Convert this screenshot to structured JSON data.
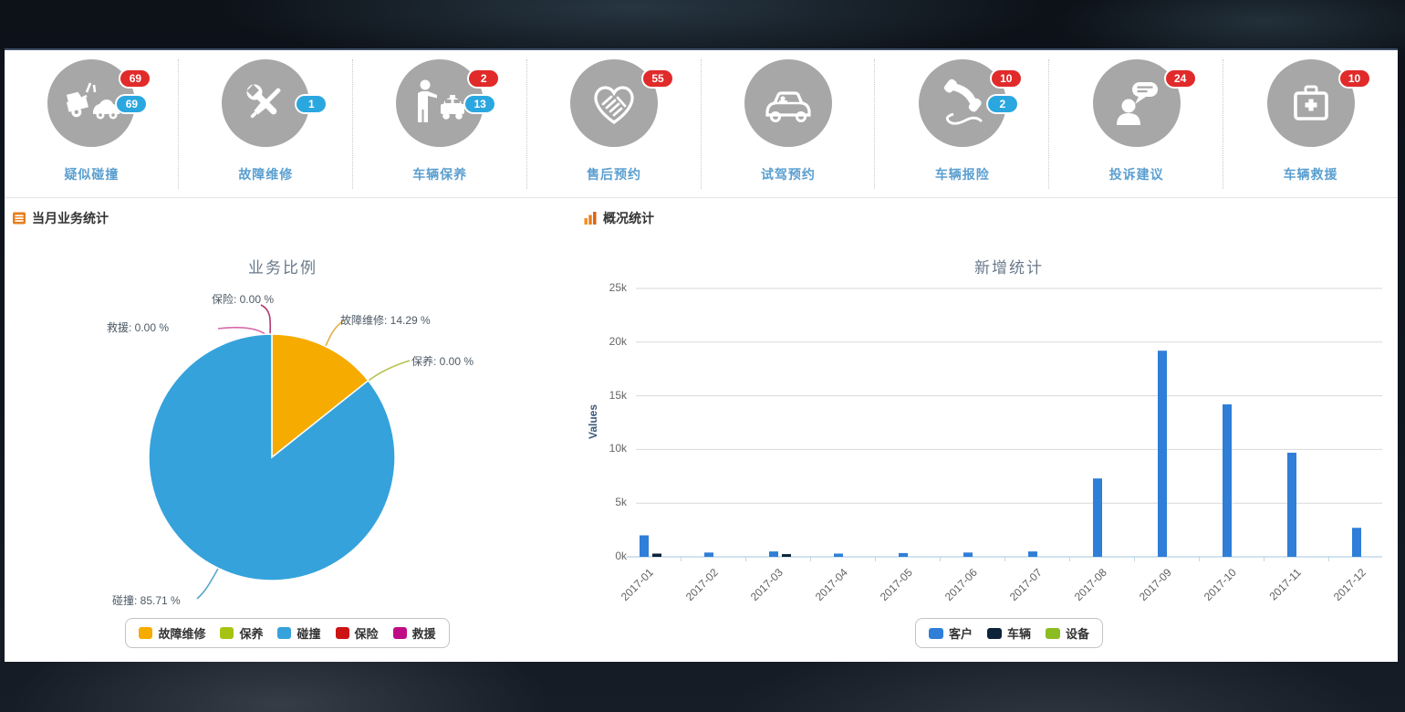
{
  "quick_actions": {
    "items": [
      {
        "label": "疑似碰撞",
        "icon": "car-collision-icon",
        "badge_red": "69",
        "badge_blue": "69"
      },
      {
        "label": "故障维修",
        "icon": "repair-tools-icon",
        "badge_red": null,
        "badge_blue": "1"
      },
      {
        "label": "车辆保养",
        "icon": "person-taxi-icon",
        "badge_red": "2",
        "badge_blue": "13"
      },
      {
        "label": "售后预约",
        "icon": "handshake-heart-icon",
        "badge_red": "55",
        "badge_blue": null
      },
      {
        "label": "试驾预约",
        "icon": "car-icon",
        "badge_red": null,
        "badge_blue": null
      },
      {
        "label": "车辆报险",
        "icon": "phone-handset-icon",
        "badge_red": "10",
        "badge_blue": "2"
      },
      {
        "label": "投诉建议",
        "icon": "person-speech-bubble-icon",
        "badge_red": "24",
        "badge_blue": null
      },
      {
        "label": "车辆救援",
        "icon": "first-aid-kit-icon",
        "badge_red": "10",
        "badge_blue": null
      }
    ]
  },
  "sections": {
    "left": {
      "title": "当月业务统计"
    },
    "right": {
      "title": "概况统计"
    }
  },
  "colors": {
    "badge_red": "#e12a2a",
    "badge_blue": "#2ba7e0",
    "icon_circle_gray": "#a7a7a7",
    "label_blue": "#5b9fd0",
    "header_icon_orange": "#e87e1e"
  },
  "chart_data": [
    {
      "type": "pie",
      "title": "业务比例",
      "labels": [
        "故障维修",
        "保养",
        "碰撞",
        "保险",
        "救援"
      ],
      "values": [
        14.29,
        0,
        85.71,
        0,
        0
      ],
      "colors": [
        "#f6ab00",
        "#a6c313",
        "#35a2dc",
        "#cc1414",
        "#bf0c84"
      ],
      "point_labels": [
        "保险: 0.00 %",
        "救援: 0.00 %",
        "故障维修: 14.29 %",
        "保养: 0.00 %",
        "碰撞: 85.71 %"
      ],
      "leader_colors": [
        "#b23a6d",
        "#d968a8",
        "#e2b14d",
        "#b8c050",
        "#5aa7c9"
      ],
      "legend": [
        "故障维修",
        "保养",
        "碰撞",
        "保险",
        "救援"
      ],
      "legend_position": "bottom"
    },
    {
      "type": "bar",
      "title": "新增统计",
      "ylabel": "Values",
      "categories": [
        "2017-01",
        "2017-02",
        "2017-03",
        "2017-04",
        "2017-05",
        "2017-06",
        "2017-07",
        "2017-08",
        "2017-09",
        "2017-10",
        "2017-11",
        "2017-12"
      ],
      "series": [
        {
          "name": "客户",
          "color": "#2f7ed8",
          "values": [
            2000,
            400,
            500,
            300,
            350,
            400,
            500,
            7300,
            19200,
            14200,
            9700,
            2700
          ]
        },
        {
          "name": "车辆",
          "color": "#0d233a",
          "values": [
            300,
            0,
            250,
            0,
            0,
            0,
            0,
            0,
            0,
            0,
            0,
            0
          ]
        },
        {
          "name": "设备",
          "color": "#8bbc21",
          "values": [
            0,
            0,
            0,
            0,
            0,
            0,
            0,
            0,
            0,
            0,
            0,
            0
          ]
        }
      ],
      "ylim": [
        0,
        25000
      ],
      "yticks": [
        "0k",
        "5k",
        "10k",
        "15k",
        "20k",
        "25k"
      ],
      "grid": true,
      "legend_position": "bottom"
    }
  ]
}
